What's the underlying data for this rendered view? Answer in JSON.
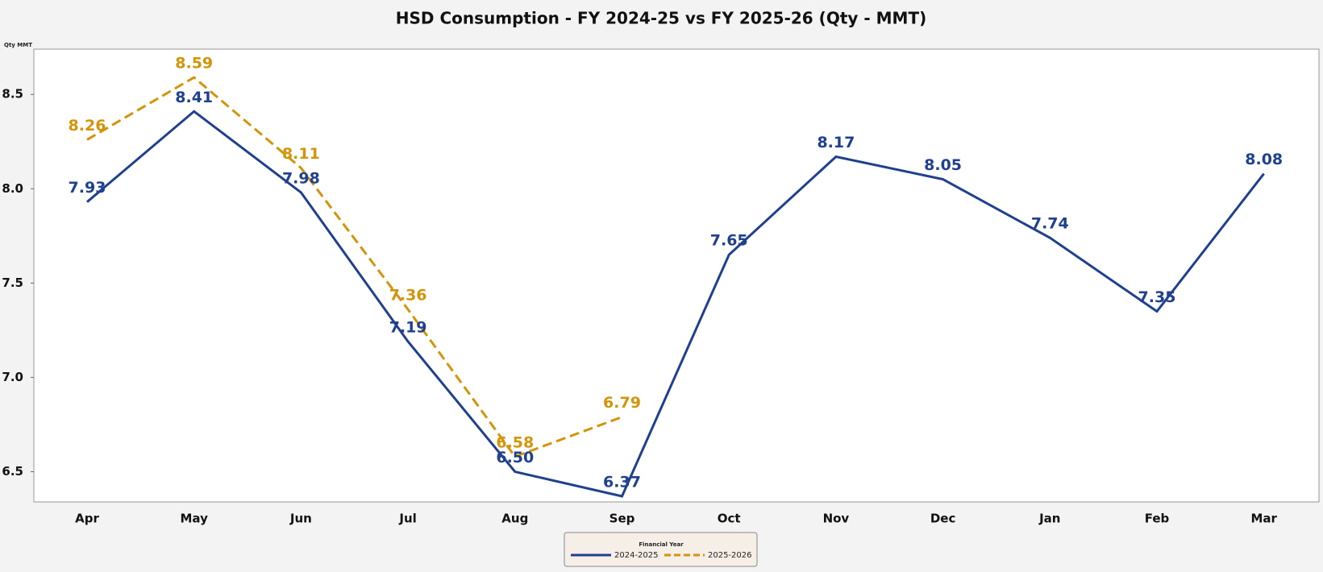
{
  "chart_data": {
    "type": "line",
    "title": "HSD Consumption - FY 2024-25 vs FY 2025-26 (Qty - MMT)",
    "y_label": "Qty MMT",
    "legend_title": "Financial Year",
    "legend_position": "bottom",
    "categories": [
      "Apr",
      "May",
      "Jun",
      "Jul",
      "Aug",
      "Sep",
      "Oct",
      "Nov",
      "Dec",
      "Jan",
      "Feb",
      "Mar"
    ],
    "series": [
      {
        "name": "2024-2025",
        "color": "#1f3f8f",
        "dash": false,
        "values": [
          7.93,
          8.41,
          7.98,
          7.19,
          6.5,
          6.37,
          7.65,
          8.17,
          8.05,
          7.74,
          7.35,
          8.08
        ],
        "value_labels": [
          "7.93",
          "8.41",
          "7.98",
          "7.19",
          "6.50",
          "6.37",
          "7.65",
          "8.17",
          "8.05",
          "7.74",
          "7.35",
          "8.08"
        ]
      },
      {
        "name": "2025-2026",
        "color": "#d4940a",
        "dash": true,
        "values": [
          8.26,
          8.59,
          8.11,
          7.36,
          6.58,
          6.79,
          null,
          null,
          null,
          null,
          null,
          null
        ],
        "value_labels": [
          "8.26",
          "8.59",
          "8.11",
          "7.36",
          "6.58",
          "6.79",
          null,
          null,
          null,
          null,
          null,
          null
        ]
      }
    ],
    "ylim": [
      6.34,
      8.74
    ],
    "yticks": [
      {
        "value": 6.5,
        "label": "6.5"
      },
      {
        "value": 7,
        "label": "7.0"
      },
      {
        "value": 7.5,
        "label": "7.5"
      },
      {
        "value": 8,
        "label": "8.0"
      },
      {
        "value": 8.5,
        "label": "8.5"
      }
    ],
    "grid": false
  }
}
